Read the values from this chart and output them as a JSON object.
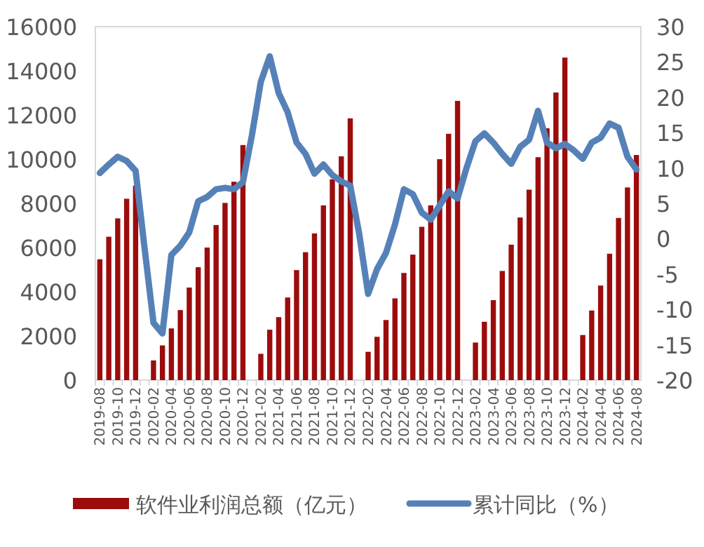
{
  "chart_data": {
    "type": "bar",
    "categories": [
      "2019-08",
      null,
      "2019-10",
      null,
      "2019-12",
      null,
      "2020-02",
      null,
      "2020-04",
      null,
      "2020-06",
      null,
      "2020-08",
      null,
      "2020-10",
      null,
      "2020-12",
      null,
      "2021-02",
      null,
      "2021-04",
      null,
      "2021-06",
      null,
      "2021-08",
      null,
      "2021-10",
      null,
      "2021-12",
      null,
      "2022-02",
      null,
      "2022-04",
      null,
      "2022-06",
      null,
      "2022-08",
      null,
      "2022-10",
      null,
      "2022-12",
      null,
      "2023-02",
      null,
      "2023-04",
      null,
      "2023-06",
      null,
      "2023-08",
      null,
      "2023-10",
      null,
      "2023-12",
      null,
      "2024-02",
      null,
      "2024-04",
      null,
      "2024-06",
      null,
      "2024-08"
    ],
    "series": [
      {
        "name": "软件业利润总额（亿元）",
        "color": "#9c0c0c",
        "values": [
          5470,
          6490,
          7320,
          8210,
          8800,
          null,
          890,
          1570,
          2340,
          3170,
          4190,
          5110,
          6000,
          7020,
          8020,
          8980,
          10640,
          null,
          1190,
          2280,
          2850,
          3740,
          4980,
          5790,
          6640,
          7910,
          9090,
          10130,
          11850,
          null,
          1280,
          1960,
          2720,
          3700,
          4850,
          5680,
          6940,
          7910,
          10000,
          11150,
          12640,
          null,
          1700,
          2640,
          3620,
          4940,
          6130,
          7360,
          8620,
          10090,
          11400,
          13020,
          14600,
          null,
          2040,
          3150,
          4280,
          5720,
          7340,
          8720,
          10190
        ]
      },
      {
        "name": "累计同比（%）",
        "type": "line",
        "color": "#5581b8",
        "axis": "y2",
        "values": [
          9.3,
          10.5,
          11.6,
          11.0,
          9.6,
          -1.3,
          -11.9,
          -13.4,
          -2.3,
          -1.0,
          0.9,
          5.3,
          5.9,
          7.0,
          7.2,
          7.0,
          8.0,
          14.6,
          22.2,
          25.8,
          20.6,
          17.9,
          13.6,
          12.0,
          9.2,
          10.5,
          9.0,
          8.1,
          7.5,
          0.7,
          -7.8,
          -4.3,
          -2.0,
          2.0,
          7.0,
          6.3,
          3.7,
          2.7,
          4.7,
          6.7,
          5.7,
          10.0,
          13.8,
          14.9,
          13.6,
          12.0,
          10.6,
          13.0,
          14.0,
          18.1,
          13.6,
          12.8,
          13.4,
          12.5,
          11.3,
          13.6,
          14.3,
          16.3,
          15.7,
          11.6,
          9.8
        ]
      }
    ],
    "ylim": [
      0,
      16000
    ],
    "yticks": [
      0,
      2000,
      4000,
      6000,
      8000,
      10000,
      12000,
      14000,
      16000
    ],
    "y2lim": [
      -20,
      30
    ],
    "y2ticks": [
      -20,
      -15,
      -10,
      -5,
      0,
      5,
      10,
      15,
      20,
      25,
      30
    ],
    "legend": "bottom"
  }
}
